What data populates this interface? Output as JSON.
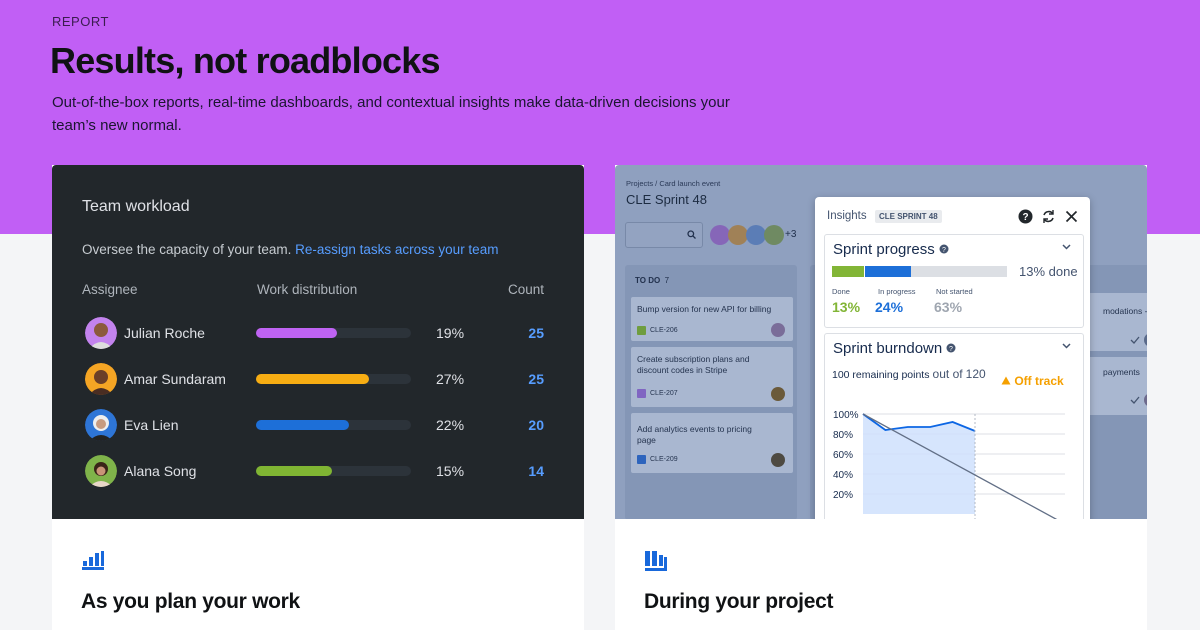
{
  "hero": {
    "eyebrow": "REPORT",
    "title": "Results, not roadblocks",
    "subtitle": "Out-of-the-box reports, real-time dashboards, and contextual insights make data-driven decisions your team’s new normal.",
    "background_color": "#c15ff5"
  },
  "workload": {
    "title": "Team workload",
    "description": "Oversee the capacity of your team.",
    "link": "Re-assign tasks across your team",
    "headers": {
      "assignee": "Assignee",
      "distribution": "Work distribution",
      "count": "Count"
    },
    "rows": [
      {
        "name": "Julian Roche",
        "percent_label": "19%",
        "fill": 0.52,
        "count": "25",
        "color": "#bf63f3",
        "avatar_bg": "#c383ee"
      },
      {
        "name": "Amar Sundaram",
        "percent_label": "27%",
        "fill": 0.73,
        "count": "25",
        "color": "#f7ad13",
        "avatar_bg": "#f5a524"
      },
      {
        "name": "Eva Lien",
        "percent_label": "22%",
        "fill": 0.6,
        "count": "20",
        "color": "#1d6fd8",
        "avatar_bg": "#2e75d6"
      },
      {
        "name": "Alana Song",
        "percent_label": "15%",
        "fill": 0.49,
        "count": "14",
        "color": "#80b533",
        "avatar_bg": "#7fb34a"
      }
    ]
  },
  "project": {
    "breadcrumb": "Projects / Card launch event",
    "sprint_name": "CLE Sprint 48",
    "extra_members": "+3",
    "todo_label": "TO DO",
    "todo_count": "7",
    "tickets": [
      {
        "title": "Bump version for new API for billing",
        "key": "CLE-206"
      },
      {
        "title": "Create subscription plans and discount codes in Stripe",
        "key": "CLE-207"
      },
      {
        "title": "Add analytics events to pricing page",
        "key": "CLE-209"
      }
    ],
    "right_col_items": [
      "modations -",
      "payments"
    ]
  },
  "insights": {
    "title": "Insights",
    "tag": "CLE SPRINT 48",
    "progress": {
      "title": "Sprint progress",
      "summary": "13% done",
      "done_label": "Done",
      "done_value": "13%",
      "inprog_label": "In progress",
      "inprog_value": "24%",
      "notstarted_label": "Not started",
      "notstarted_value": "63%",
      "done_fraction": 0.13,
      "inprog_fraction": 0.24,
      "notstarted_fraction": 0.63
    },
    "burndown": {
      "title": "Sprint burndown",
      "remaining": "100 remaining points",
      "out_of": "out of",
      "total": "120",
      "status": "Off track",
      "y_ticks": [
        "100%",
        "80%",
        "60%",
        "40%",
        "20%"
      ]
    }
  },
  "chart_data": {
    "type": "line",
    "title": "Sprint burndown",
    "y_ticks": [
      "100%",
      "80%",
      "60%",
      "40%",
      "20%"
    ],
    "series": [
      {
        "name": "",
        "y": [
          100,
          84,
          87,
          87,
          92,
          83
        ]
      },
      {
        "name": "",
        "y": [
          100,
          0
        ]
      }
    ]
  },
  "bottom": {
    "left_title": "As you plan your work",
    "right_title": "During your project"
  }
}
